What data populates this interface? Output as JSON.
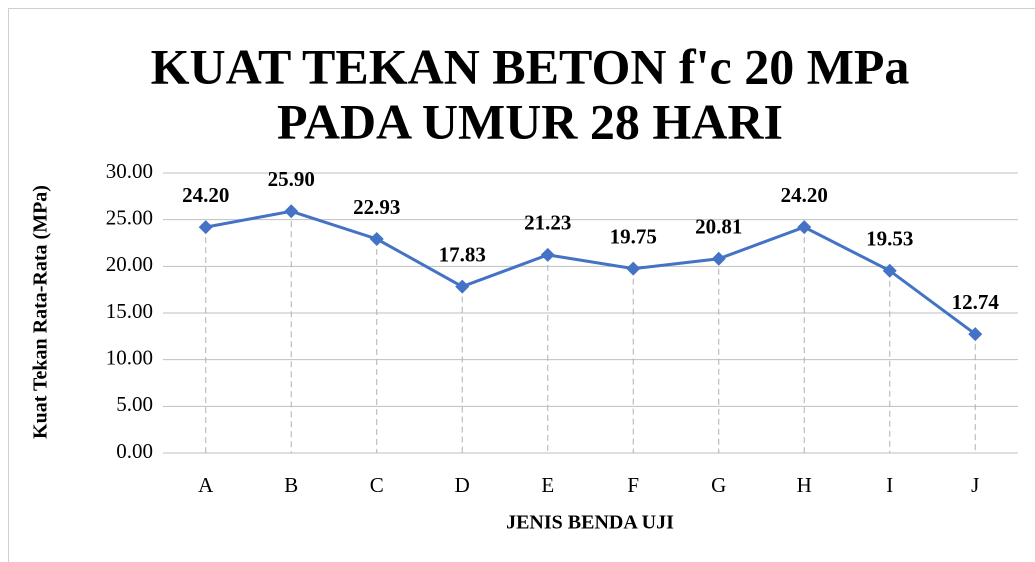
{
  "chart_data": {
    "type": "line",
    "title": [
      "KUAT TEKAN BETON f'c 20 MPa",
      "PADA UMUR 28 HARI"
    ],
    "x_label": "JENIS BENDA UJI",
    "y_label": "Kuat Tekan Rata-Rata (MPa)",
    "categories": [
      "A",
      "B",
      "C",
      "D",
      "E",
      "F",
      "G",
      "H",
      "I",
      "J"
    ],
    "values": [
      24.2,
      25.9,
      22.93,
      17.83,
      21.23,
      19.75,
      20.81,
      24.2,
      19.53,
      12.74
    ],
    "value_labels": [
      "24.20",
      "25.90",
      "22.93",
      "17.83",
      "21.23",
      "19.75",
      "20.81",
      "24.20",
      "19.53",
      "12.74"
    ],
    "color": "#4472c4",
    "ylim": [
      0,
      30
    ],
    "yticks": [
      {
        "value": 0,
        "label": "0.00"
      },
      {
        "value": 5,
        "label": "5.00"
      },
      {
        "value": 10,
        "label": "10.00"
      },
      {
        "value": 15,
        "label": "15.00"
      },
      {
        "value": 20,
        "label": "20.00"
      },
      {
        "value": 25,
        "label": "25.00"
      },
      {
        "value": 30,
        "label": "30.00"
      }
    ],
    "grid": true
  }
}
